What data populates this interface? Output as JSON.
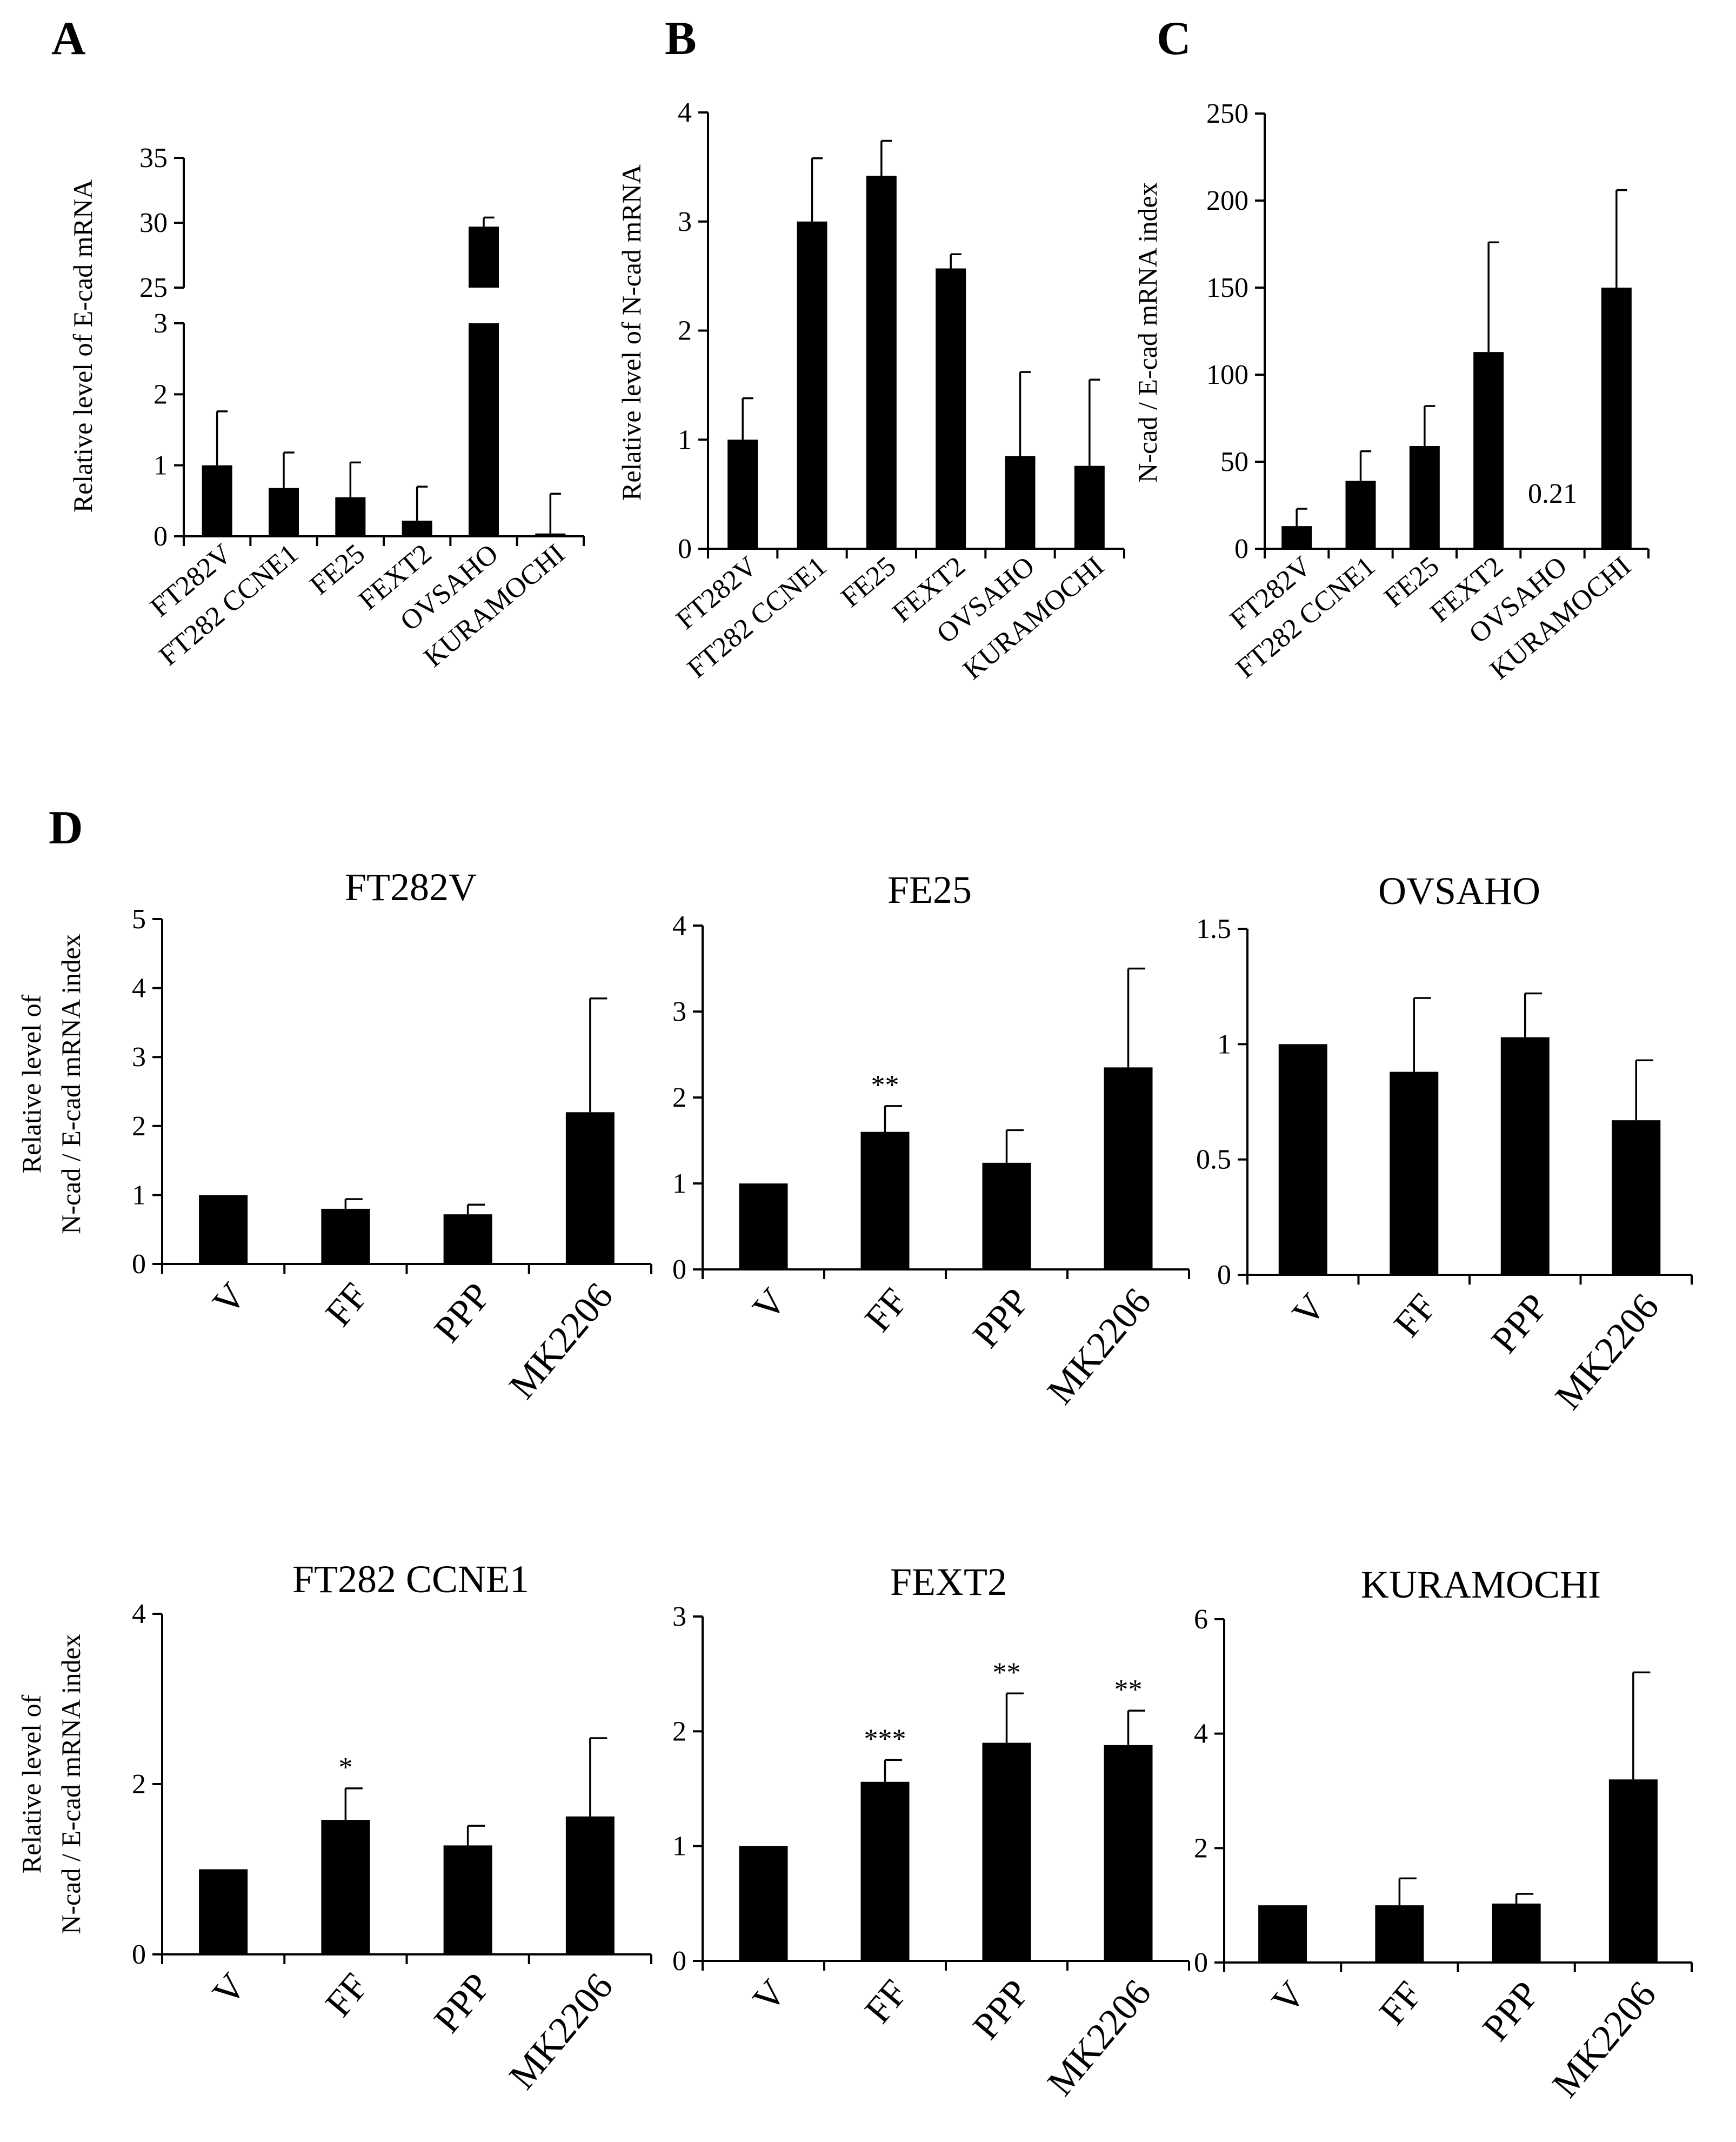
{
  "panels": [
    "A",
    "B",
    "C",
    "D"
  ],
  "chart_data": [
    {
      "id": "A",
      "type": "bar",
      "ylabel": "Relative level of  E-cad mRNA",
      "categories": [
        "FT282V",
        "FT282 CCNE1",
        "FE25",
        "FEXT2",
        "OVSAHO",
        "KURAMOCHI"
      ],
      "values": [
        1.0,
        0.68,
        0.55,
        0.22,
        29.7,
        0.04
      ],
      "errors": [
        0.76,
        0.5,
        0.49,
        0.48,
        0.7,
        0.56
      ],
      "ylim": [
        0,
        35
      ],
      "axis_break": {
        "lower": [
          0,
          3
        ],
        "upper": [
          25,
          35
        ]
      },
      "yticks": [
        0,
        1,
        2,
        3,
        25,
        30,
        35
      ]
    },
    {
      "id": "B",
      "type": "bar",
      "ylabel": "Relative level  of  N-cad mRNA",
      "categories": [
        "FT282V",
        "FT282 CCNE1",
        "FE25",
        "FEXT2",
        "OVSAHO",
        "KURAMOCHI"
      ],
      "values": [
        1.0,
        3.0,
        3.42,
        2.57,
        0.85,
        0.76
      ],
      "errors": [
        0.38,
        0.58,
        0.32,
        0.13,
        0.77,
        0.79
      ],
      "ylim": [
        0,
        4
      ],
      "yticks": [
        0,
        1,
        2,
        3,
        4
      ]
    },
    {
      "id": "C",
      "type": "bar",
      "ylabel": "N-cad / E-cad mRNA index",
      "categories": [
        "FT282V",
        "FT282 CCNE1",
        "FE25",
        "FEXT2",
        "OVSAHO",
        "KURAMOCHI"
      ],
      "values": [
        13,
        39,
        59,
        113,
        0.21,
        150
      ],
      "errors": [
        10,
        17,
        23,
        63,
        0,
        56
      ],
      "ylim": [
        0,
        250
      ],
      "yticks": [
        0,
        50,
        100,
        150,
        200,
        250
      ],
      "annotations": [
        {
          "category": "OVSAHO",
          "text": "0.21"
        }
      ]
    },
    {
      "id": "D1",
      "type": "bar",
      "title": "FT282V",
      "ylabel": [
        "Relative level of",
        "N-cad / E-cad mRNA index"
      ],
      "categories": [
        "V",
        "FF",
        "PPP",
        "MK2206"
      ],
      "values": [
        1.0,
        0.8,
        0.72,
        2.2
      ],
      "errors": [
        0,
        0.14,
        0.14,
        1.65
      ],
      "ylim": [
        0,
        5
      ],
      "yticks": [
        0,
        1,
        2,
        3,
        4,
        5
      ],
      "significance": [
        "",
        "",
        "",
        ""
      ]
    },
    {
      "id": "D2",
      "type": "bar",
      "title": "FE25",
      "categories": [
        "V",
        "FF",
        "PPP",
        "MK2206"
      ],
      "values": [
        1.0,
        1.6,
        1.24,
        2.35
      ],
      "errors": [
        0,
        0.3,
        0.38,
        1.15
      ],
      "ylim": [
        0,
        4
      ],
      "yticks": [
        0,
        1,
        2,
        3,
        4
      ],
      "significance": [
        "",
        "**",
        "",
        ""
      ]
    },
    {
      "id": "D3",
      "type": "bar",
      "title": "OVSAHO",
      "categories": [
        "V",
        "FF",
        "PPP",
        "MK2206"
      ],
      "values": [
        1.0,
        0.88,
        1.03,
        0.67
      ],
      "errors": [
        0,
        0.32,
        0.19,
        0.26
      ],
      "ylim": [
        0,
        1.5
      ],
      "yticks": [
        0,
        0.5,
        1,
        1.5
      ],
      "ytick_labels": [
        "0",
        "0.5",
        "1",
        "1.5"
      ],
      "significance": [
        "",
        "",
        "",
        ""
      ]
    },
    {
      "id": "D4",
      "type": "bar",
      "title": "FT282  CCNE1",
      "ylabel": [
        "Relative level of",
        "N-cad / E-cad mRNA index"
      ],
      "categories": [
        "V",
        "FF",
        "PPP",
        "MK2206"
      ],
      "values": [
        1.0,
        1.58,
        1.28,
        1.62
      ],
      "errors": [
        0,
        0.37,
        0.23,
        0.92
      ],
      "ylim": [
        0,
        4
      ],
      "yticks": [
        0,
        2,
        4
      ],
      "significance": [
        "",
        "*",
        "",
        ""
      ]
    },
    {
      "id": "D5",
      "type": "bar",
      "title": "FEXT2",
      "categories": [
        "V",
        "FF",
        "PPP",
        "MK2206"
      ],
      "values": [
        1.0,
        1.56,
        1.9,
        1.88
      ],
      "errors": [
        0,
        0.19,
        0.43,
        0.3
      ],
      "ylim": [
        0,
        3
      ],
      "yticks": [
        0,
        1,
        2,
        3
      ],
      "significance": [
        "",
        "***",
        "**",
        "**"
      ]
    },
    {
      "id": "D6",
      "type": "bar",
      "title": "KURAMOCHI",
      "categories": [
        "V",
        "FF",
        "PPP",
        "MK2206"
      ],
      "values": [
        1.0,
        1.0,
        1.03,
        3.2
      ],
      "errors": [
        0,
        0.47,
        0.17,
        1.87
      ],
      "ylim": [
        0,
        6
      ],
      "yticks": [
        0,
        2,
        4,
        6
      ],
      "significance": [
        "",
        "",
        "",
        ""
      ]
    }
  ]
}
